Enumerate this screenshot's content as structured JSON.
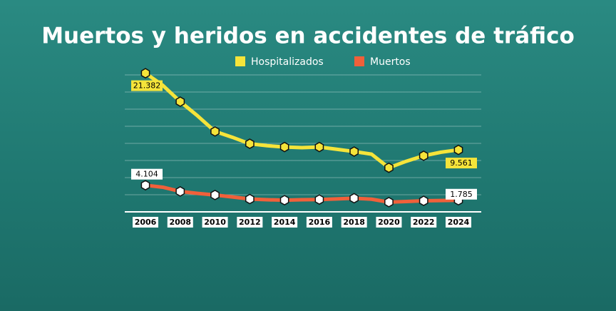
{
  "chart_data": {
    "type": "line",
    "title": "Muertos y heridos en accidentes de tráfico",
    "x": [
      2006,
      2007,
      2008,
      2009,
      2010,
      2011,
      2012,
      2013,
      2014,
      2015,
      2016,
      2017,
      2018,
      2019,
      2020,
      2021,
      2022,
      2023,
      2024
    ],
    "xlim": [
      2006,
      2024
    ],
    "xticks": [
      2006,
      2008,
      2010,
      2012,
      2014,
      2016,
      2018,
      2020,
      2022,
      2024
    ],
    "ylim": [
      0,
      22000
    ],
    "grid": true,
    "series": [
      {
        "name": "Hospitalizados",
        "color": "#f5e43a",
        "marker_color": "#f5e43a",
        "label_box": "#f5e43a",
        "values": [
          21382,
          19500,
          17000,
          14800,
          12400,
          11500,
          10500,
          10200,
          10000,
          9900,
          10000,
          9650,
          9300,
          8900,
          6800,
          7800,
          8650,
          9200,
          9561
        ],
        "value_labels": [
          "21.382",
          null,
          null,
          null,
          null,
          null,
          null,
          null,
          null,
          null,
          null,
          null,
          null,
          null,
          null,
          null,
          null,
          null,
          "9.561"
        ]
      },
      {
        "name": "Muertos",
        "color": "#f0603a",
        "marker_color": "#ffffff",
        "label_box": "#ffffff",
        "values": [
          4104,
          3800,
          3150,
          2850,
          2600,
          2300,
          1980,
          1870,
          1800,
          1870,
          1900,
          2000,
          2100,
          1950,
          1500,
          1600,
          1700,
          1750,
          1785
        ],
        "value_labels": [
          "4.104",
          null,
          null,
          null,
          null,
          null,
          null,
          null,
          null,
          null,
          null,
          null,
          null,
          null,
          null,
          null,
          null,
          null,
          "1.785"
        ]
      }
    ]
  }
}
